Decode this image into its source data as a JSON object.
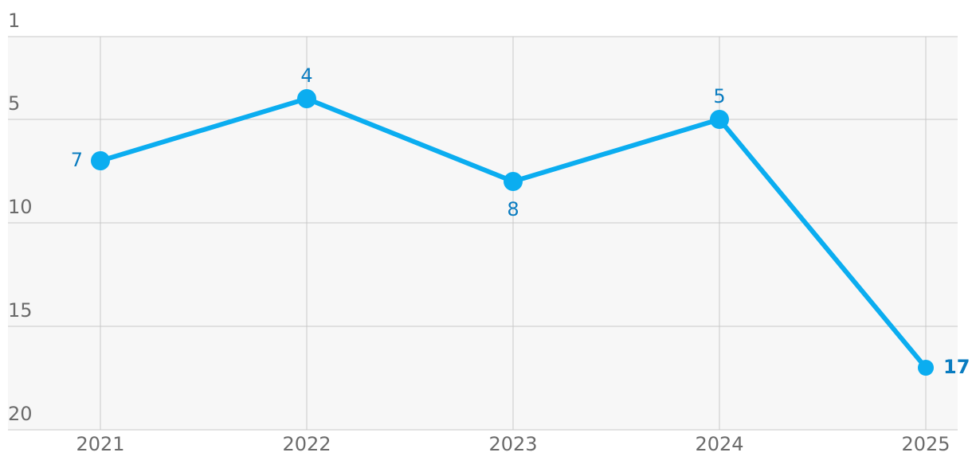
{
  "chart_data": {
    "type": "line",
    "categories": [
      "2021",
      "2022",
      "2023",
      "2024",
      "2025"
    ],
    "series": [
      {
        "color": "#0badf0",
        "values": [
          7,
          4,
          8,
          5,
          17
        ]
      }
    ],
    "ylim": [
      1,
      20
    ],
    "invert_y": true,
    "yticks": [
      1,
      5,
      10,
      15,
      20
    ],
    "grid": true
  }
}
